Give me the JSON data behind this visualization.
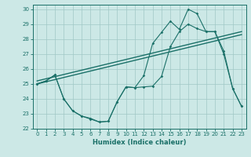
{
  "xlabel": "Humidex (Indice chaleur)",
  "xlim": [
    -0.5,
    23.5
  ],
  "ylim": [
    22,
    30.3
  ],
  "yticks": [
    22,
    23,
    24,
    25,
    26,
    27,
    28,
    29,
    30
  ],
  "xticks": [
    0,
    1,
    2,
    3,
    4,
    5,
    6,
    7,
    8,
    9,
    10,
    11,
    12,
    13,
    14,
    15,
    16,
    17,
    18,
    19,
    20,
    21,
    22,
    23
  ],
  "background_color": "#cce8e6",
  "grid_color": "#a0c8c6",
  "line_color": "#1a7068",
  "trend1_x": [
    0,
    23
  ],
  "trend1_y": [
    25.0,
    28.3
  ],
  "trend2_x": [
    0,
    23
  ],
  "trend2_y": [
    25.2,
    28.5
  ],
  "jagged_lower_x": [
    0,
    1,
    2,
    3,
    4,
    5,
    6,
    7,
    8,
    9,
    10,
    11,
    12,
    13,
    14,
    15,
    16,
    17,
    18,
    19,
    20,
    21,
    22,
    23
  ],
  "jagged_lower_y": [
    25.0,
    25.2,
    25.6,
    24.0,
    23.2,
    22.85,
    22.7,
    22.45,
    22.5,
    23.8,
    24.8,
    24.75,
    24.8,
    24.85,
    25.5,
    27.5,
    28.5,
    29.0,
    28.7,
    28.5,
    28.5,
    27.0,
    24.7,
    23.5
  ],
  "jagged_upper_x": [
    0,
    1,
    2,
    3,
    4,
    5,
    6,
    7,
    8,
    9,
    10,
    11,
    12,
    13,
    14,
    15,
    16,
    17,
    18,
    19,
    20,
    21,
    22,
    23
  ],
  "jagged_upper_y": [
    25.0,
    25.2,
    25.6,
    24.0,
    23.2,
    22.85,
    22.65,
    22.45,
    22.5,
    23.8,
    24.8,
    24.75,
    25.55,
    27.7,
    28.45,
    29.2,
    28.65,
    30.0,
    29.7,
    28.5,
    28.5,
    27.2,
    24.7,
    23.5
  ]
}
